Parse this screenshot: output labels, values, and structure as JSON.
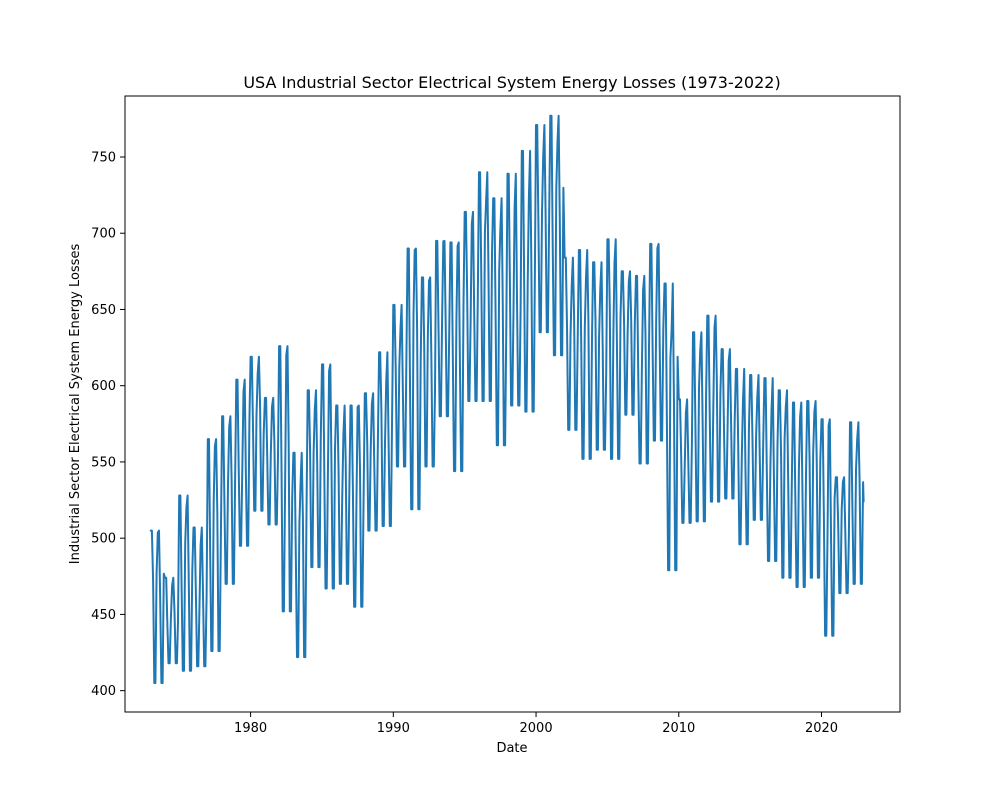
{
  "chart_data": {
    "type": "line",
    "title": "USA Industrial Sector Electrical System Energy Losses (1973-2022)",
    "xlabel": "Date",
    "ylabel": "Industrial Sector Electrical System Energy Losses",
    "xlim": [
      1971.2,
      2025.5
    ],
    "ylim": [
      386,
      790
    ],
    "x_ticks": [
      1980,
      1990,
      2000,
      2010,
      2020
    ],
    "y_ticks": [
      400,
      450,
      500,
      550,
      600,
      650,
      700,
      750
    ],
    "grid": false,
    "legend": "none",
    "line_color": "#1f77b4",
    "annual_peaks": [
      {
        "year": 1973,
        "value": 505
      },
      {
        "year": 1974,
        "value": 474
      },
      {
        "year": 1975,
        "value": 528
      },
      {
        "year": 1976,
        "value": 507
      },
      {
        "year": 1977,
        "value": 565
      },
      {
        "year": 1978,
        "value": 580
      },
      {
        "year": 1979,
        "value": 604
      },
      {
        "year": 1980,
        "value": 619
      },
      {
        "year": 1981,
        "value": 592
      },
      {
        "year": 1982,
        "value": 626
      },
      {
        "year": 1983,
        "value": 556
      },
      {
        "year": 1984,
        "value": 597
      },
      {
        "year": 1985,
        "value": 614
      },
      {
        "year": 1986,
        "value": 587
      },
      {
        "year": 1987,
        "value": 587
      },
      {
        "year": 1988,
        "value": 595
      },
      {
        "year": 1989,
        "value": 622
      },
      {
        "year": 1990,
        "value": 653
      },
      {
        "year": 1991,
        "value": 690
      },
      {
        "year": 1992,
        "value": 671
      },
      {
        "year": 1993,
        "value": 695
      },
      {
        "year": 1994,
        "value": 694
      },
      {
        "year": 1995,
        "value": 714
      },
      {
        "year": 1996,
        "value": 740
      },
      {
        "year": 1997,
        "value": 723
      },
      {
        "year": 1998,
        "value": 739
      },
      {
        "year": 1999,
        "value": 754
      },
      {
        "year": 2000,
        "value": 771
      },
      {
        "year": 2001,
        "value": 777
      },
      {
        "year": 2002,
        "value": 684
      },
      {
        "year": 2003,
        "value": 689
      },
      {
        "year": 2004,
        "value": 681
      },
      {
        "year": 2005,
        "value": 696
      },
      {
        "year": 2006,
        "value": 675
      },
      {
        "year": 2007,
        "value": 672
      },
      {
        "year": 2008,
        "value": 693
      },
      {
        "year": 2009,
        "value": 667
      },
      {
        "year": 2010,
        "value": 591
      },
      {
        "year": 2011,
        "value": 635
      },
      {
        "year": 2012,
        "value": 646
      },
      {
        "year": 2013,
        "value": 624
      },
      {
        "year": 2014,
        "value": 611
      },
      {
        "year": 2015,
        "value": 607
      },
      {
        "year": 2016,
        "value": 605
      },
      {
        "year": 2017,
        "value": 597
      },
      {
        "year": 2018,
        "value": 589
      },
      {
        "year": 2019,
        "value": 590
      },
      {
        "year": 2020,
        "value": 578
      },
      {
        "year": 2021,
        "value": 540
      },
      {
        "year": 2022,
        "value": 576
      },
      {
        "year": 2023,
        "value": 566
      }
    ],
    "annual_troughs": [
      {
        "year": 1973,
        "value": 405
      },
      {
        "year": 1974,
        "value": 418
      },
      {
        "year": 1975,
        "value": 413
      },
      {
        "year": 1976,
        "value": 416
      },
      {
        "year": 1977,
        "value": 426
      },
      {
        "year": 1978,
        "value": 470
      },
      {
        "year": 1979,
        "value": 495
      },
      {
        "year": 1980,
        "value": 518
      },
      {
        "year": 1981,
        "value": 509
      },
      {
        "year": 1982,
        "value": 452
      },
      {
        "year": 1983,
        "value": 422
      },
      {
        "year": 1984,
        "value": 481
      },
      {
        "year": 1985,
        "value": 467
      },
      {
        "year": 1986,
        "value": 470
      },
      {
        "year": 1987,
        "value": 455
      },
      {
        "year": 1988,
        "value": 505
      },
      {
        "year": 1989,
        "value": 508
      },
      {
        "year": 1990,
        "value": 547
      },
      {
        "year": 1991,
        "value": 519
      },
      {
        "year": 1992,
        "value": 547
      },
      {
        "year": 1993,
        "value": 580
      },
      {
        "year": 1994,
        "value": 544
      },
      {
        "year": 1995,
        "value": 590
      },
      {
        "year": 1996,
        "value": 590
      },
      {
        "year": 1997,
        "value": 561
      },
      {
        "year": 1998,
        "value": 587
      },
      {
        "year": 1999,
        "value": 583
      },
      {
        "year": 2000,
        "value": 635
      },
      {
        "year": 2001,
        "value": 620
      },
      {
        "year": 2002,
        "value": 571
      },
      {
        "year": 2003,
        "value": 552
      },
      {
        "year": 2004,
        "value": 558
      },
      {
        "year": 2005,
        "value": 552
      },
      {
        "year": 2006,
        "value": 581
      },
      {
        "year": 2007,
        "value": 549
      },
      {
        "year": 2008,
        "value": 564
      },
      {
        "year": 2009,
        "value": 479
      },
      {
        "year": 2010,
        "value": 510
      },
      {
        "year": 2011,
        "value": 511
      },
      {
        "year": 2012,
        "value": 524
      },
      {
        "year": 2013,
        "value": 526
      },
      {
        "year": 2014,
        "value": 496
      },
      {
        "year": 2015,
        "value": 512
      },
      {
        "year": 2016,
        "value": 485
      },
      {
        "year": 2017,
        "value": 474
      },
      {
        "year": 2018,
        "value": 468
      },
      {
        "year": 2019,
        "value": 474
      },
      {
        "year": 2020,
        "value": 436
      },
      {
        "year": 2021,
        "value": 464
      },
      {
        "year": 2022,
        "value": 470
      },
      {
        "year": 2023,
        "value": 490
      }
    ],
    "last_value": {
      "year": 2022.95,
      "value": 524
    }
  }
}
